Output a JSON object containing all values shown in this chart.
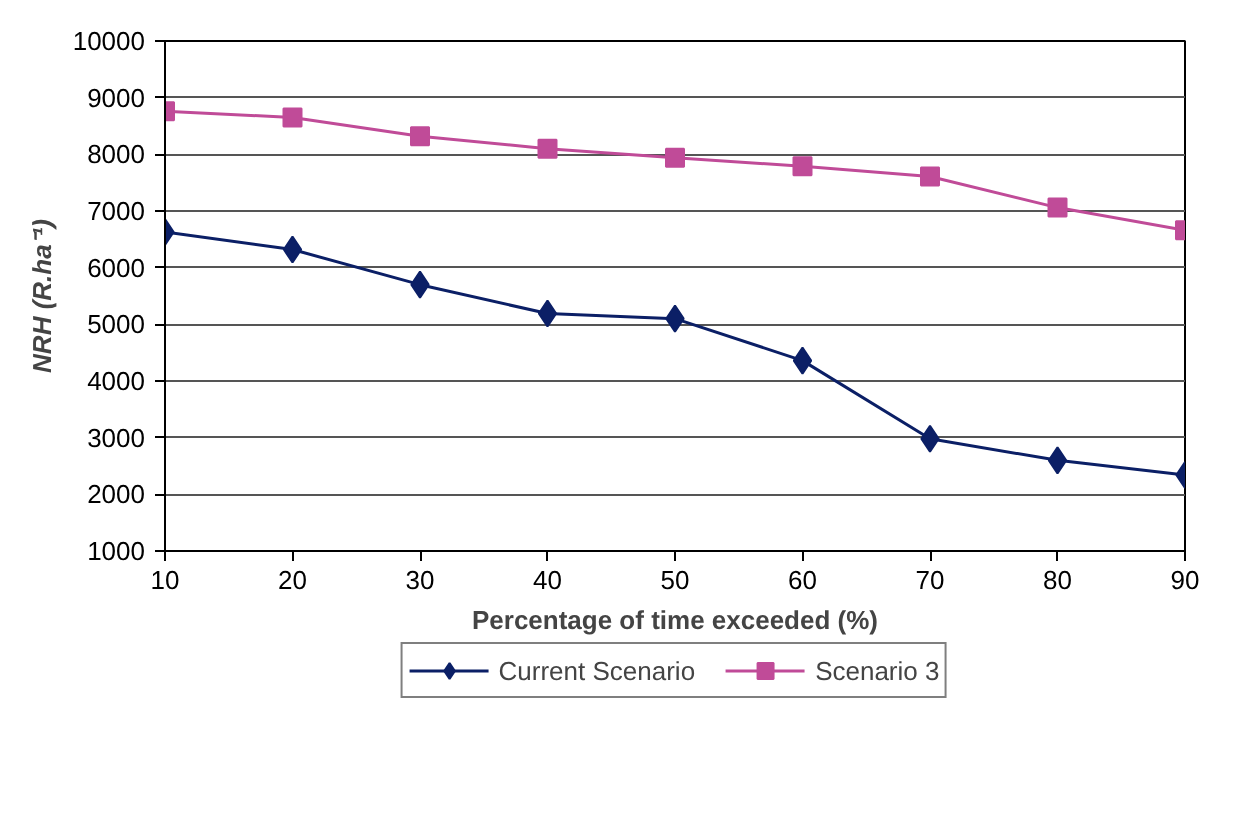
{
  "chart_data": {
    "type": "line",
    "xlabel": "Percentage of time exceeded (%)",
    "ylabel": "NRH (R.ha⁻¹)",
    "x": [
      10,
      20,
      30,
      40,
      50,
      60,
      70,
      80,
      90
    ],
    "series": [
      {
        "name": "Current Scenario",
        "color": "#0b1f66",
        "marker": "diamond",
        "values": [
          6630,
          6320,
          5700,
          5190,
          5100,
          4360,
          2980,
          2600,
          2340
        ]
      },
      {
        "name": "Scenario 3",
        "color": "#c04b98",
        "marker": "square",
        "values": [
          8760,
          8650,
          8320,
          8100,
          7940,
          7790,
          7610,
          7060,
          6660
        ]
      }
    ],
    "xlim": [
      10,
      90
    ],
    "xticks": [
      10,
      20,
      30,
      40,
      50,
      60,
      70,
      80,
      90
    ],
    "ylim": [
      1000,
      10000
    ],
    "yticks": [
      1000,
      2000,
      3000,
      4000,
      5000,
      6000,
      7000,
      8000,
      9000,
      10000
    ],
    "grid": "y",
    "legend": "bottom",
    "line_style": "solid"
  }
}
